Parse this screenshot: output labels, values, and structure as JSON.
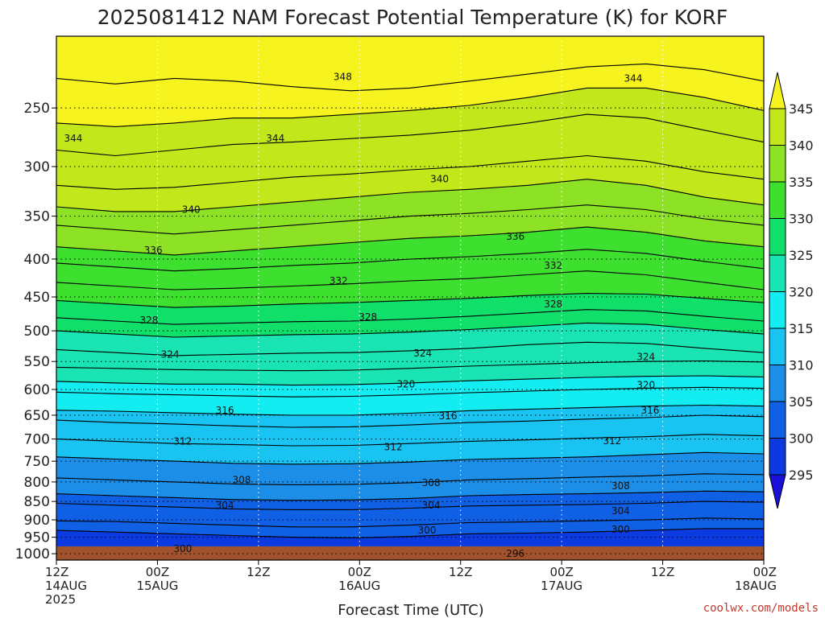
{
  "chart_data": {
    "type": "heatmap",
    "title": "2025081412 NAM Forecast Potential Temperature (K) for KORF",
    "xlabel": "Forecast Time (UTC)",
    "ylabel": "",
    "credit": "coolwx.com/models",
    "x_range_hours": [
      0,
      84
    ],
    "y_range_hPa": [
      1020,
      200
    ],
    "y_scale": "log-pressure",
    "grid": true,
    "x_ticks": [
      {
        "hour": 0,
        "lines": [
          "12Z",
          "14AUG",
          "2025"
        ]
      },
      {
        "hour": 12,
        "lines": [
          "00Z",
          "15AUG"
        ]
      },
      {
        "hour": 24,
        "lines": [
          "12Z"
        ]
      },
      {
        "hour": 36,
        "lines": [
          "00Z",
          "16AUG"
        ]
      },
      {
        "hour": 48,
        "lines": [
          "12Z"
        ]
      },
      {
        "hour": 60,
        "lines": [
          "00Z",
          "17AUG"
        ]
      },
      {
        "hour": 72,
        "lines": [
          "12Z"
        ]
      },
      {
        "hour": 84,
        "lines": [
          "00Z",
          "18AUG"
        ]
      }
    ],
    "y_ticks": [
      250,
      300,
      350,
      400,
      450,
      500,
      550,
      600,
      650,
      700,
      750,
      800,
      850,
      900,
      950,
      1000
    ],
    "colorbar": {
      "levels": [
        295,
        300,
        305,
        310,
        315,
        320,
        325,
        330,
        335,
        340,
        345
      ],
      "colors": [
        "#1a10d8",
        "#0a3ae0",
        "#1060e6",
        "#1c8ee8",
        "#19c3f2",
        "#13ecf0",
        "#1ae3b4",
        "#10e06a",
        "#3ee030",
        "#8de226",
        "#c2e81c",
        "#f6f31e"
      ]
    },
    "contour_series": [
      {
        "value": 296,
        "pressure_hPa": [
          1008,
          1008,
          1008,
          1008,
          1008,
          1008,
          1008,
          1008,
          1008,
          1008,
          1008,
          1008,
          1008
        ]
      },
      {
        "value": 298,
        "pressure_hPa": [
          985,
          985,
          985,
          984,
          984,
          983,
          982,
          982,
          981,
          980,
          980,
          982,
          986
        ]
      },
      {
        "value": 300,
        "pressure_hPa": [
          930,
          935,
          940,
          945,
          950,
          952,
          948,
          940,
          938,
          935,
          930,
          925,
          925
        ]
      },
      {
        "value": 302,
        "pressure_hPa": [
          903,
          905,
          910,
          915,
          920,
          920,
          915,
          908,
          906,
          903,
          900,
          895,
          898
        ]
      },
      {
        "value": 304,
        "pressure_hPa": [
          855,
          860,
          865,
          870,
          872,
          872,
          868,
          862,
          860,
          858,
          855,
          850,
          852
        ]
      },
      {
        "value": 306,
        "pressure_hPa": [
          830,
          835,
          840,
          845,
          847,
          846,
          842,
          835,
          832,
          830,
          827,
          823,
          825
        ]
      },
      {
        "value": 308,
        "pressure_hPa": [
          790,
          795,
          800,
          805,
          807,
          806,
          802,
          795,
          792,
          788,
          785,
          780,
          782
        ]
      },
      {
        "value": 310,
        "pressure_hPa": [
          740,
          745,
          750,
          755,
          757,
          756,
          752,
          746,
          743,
          740,
          735,
          730,
          733
        ]
      },
      {
        "value": 312,
        "pressure_hPa": [
          700,
          705,
          710,
          712,
          715,
          714,
          710,
          705,
          702,
          698,
          695,
          690,
          693
        ]
      },
      {
        "value": 314,
        "pressure_hPa": [
          660,
          665,
          668,
          672,
          675,
          674,
          670,
          665,
          662,
          658,
          655,
          650,
          653
        ]
      },
      {
        "value": 316,
        "pressure_hPa": [
          640,
          642,
          645,
          648,
          650,
          650,
          646,
          641,
          638,
          635,
          632,
          630,
          632
        ]
      },
      {
        "value": 318,
        "pressure_hPa": [
          605,
          608,
          610,
          612,
          614,
          613,
          610,
          606,
          603,
          600,
          598,
          596,
          598
        ]
      },
      {
        "value": 320,
        "pressure_hPa": [
          585,
          588,
          590,
          590,
          592,
          591,
          588,
          584,
          581,
          578,
          576,
          575,
          577
        ]
      },
      {
        "value": 322,
        "pressure_hPa": [
          560,
          562,
          564,
          565,
          566,
          565,
          562,
          558,
          555,
          552,
          550,
          549,
          551
        ]
      },
      {
        "value": 324,
        "pressure_hPa": [
          530,
          535,
          540,
          538,
          536,
          535,
          532,
          528,
          522,
          518,
          520,
          528,
          535
        ]
      },
      {
        "value": 326,
        "pressure_hPa": [
          500,
          505,
          510,
          508,
          506,
          505,
          502,
          498,
          493,
          488,
          490,
          498,
          505
        ]
      },
      {
        "value": 328,
        "pressure_hPa": [
          480,
          485,
          490,
          488,
          486,
          485,
          482,
          478,
          473,
          468,
          470,
          478,
          485
        ]
      },
      {
        "value": 330,
        "pressure_hPa": [
          455,
          460,
          465,
          463,
          460,
          458,
          455,
          452,
          448,
          445,
          446,
          452,
          458
        ]
      },
      {
        "value": 332,
        "pressure_hPa": [
          430,
          435,
          440,
          438,
          435,
          432,
          428,
          425,
          420,
          415,
          420,
          430,
          440
        ]
      },
      {
        "value": 334,
        "pressure_hPa": [
          405,
          410,
          415,
          412,
          408,
          405,
          400,
          397,
          393,
          388,
          393,
          403,
          412
        ]
      },
      {
        "value": 336,
        "pressure_hPa": [
          385,
          390,
          395,
          390,
          385,
          380,
          375,
          372,
          368,
          362,
          368,
          378,
          385
        ]
      },
      {
        "value": 338,
        "pressure_hPa": [
          360,
          365,
          370,
          365,
          360,
          355,
          350,
          347,
          343,
          338,
          343,
          353,
          360
        ]
      },
      {
        "value": 340,
        "pressure_hPa": [
          340,
          345,
          345,
          340,
          335,
          330,
          325,
          322,
          318,
          312,
          318,
          330,
          338
        ]
      },
      {
        "value": 342,
        "pressure_hPa": [
          318,
          322,
          320,
          315,
          310,
          307,
          303,
          300,
          295,
          290,
          295,
          305,
          312
        ]
      },
      {
        "value": 344,
        "pressure_hPa": [
          285,
          290,
          285,
          280,
          278,
          275,
          272,
          268,
          262,
          255,
          258,
          268,
          278
        ]
      },
      {
        "value": 346,
        "pressure_hPa": [
          262,
          265,
          262,
          258,
          258,
          255,
          252,
          248,
          242,
          235,
          235,
          242,
          252
        ]
      },
      {
        "value": 348,
        "pressure_hPa": [
          228,
          232,
          228,
          230,
          234,
          237,
          235,
          230,
          225,
          220,
          218,
          222,
          230
        ]
      }
    ],
    "contour_labels": [
      {
        "text": "348",
        "hour": 34,
        "pressure_hPa": 227
      },
      {
        "text": "344",
        "hour": 68.5,
        "pressure_hPa": 228
      },
      {
        "text": "344",
        "hour": 2,
        "pressure_hPa": 275
      },
      {
        "text": "344",
        "hour": 26,
        "pressure_hPa": 275
      },
      {
        "text": "340",
        "hour": 45.5,
        "pressure_hPa": 312
      },
      {
        "text": "340",
        "hour": 16,
        "pressure_hPa": 343
      },
      {
        "text": "336",
        "hour": 54.5,
        "pressure_hPa": 373
      },
      {
        "text": "336",
        "hour": 11.5,
        "pressure_hPa": 389
      },
      {
        "text": "332",
        "hour": 33.5,
        "pressure_hPa": 428
      },
      {
        "text": "332",
        "hour": 59,
        "pressure_hPa": 408
      },
      {
        "text": "328",
        "hour": 11,
        "pressure_hPa": 484
      },
      {
        "text": "328",
        "hour": 37,
        "pressure_hPa": 479
      },
      {
        "text": "328",
        "hour": 59,
        "pressure_hPa": 460
      },
      {
        "text": "324",
        "hour": 13.5,
        "pressure_hPa": 538
      },
      {
        "text": "324",
        "hour": 43.5,
        "pressure_hPa": 536
      },
      {
        "text": "324",
        "hour": 70,
        "pressure_hPa": 542
      },
      {
        "text": "320",
        "hour": 41.5,
        "pressure_hPa": 590
      },
      {
        "text": "320",
        "hour": 70,
        "pressure_hPa": 592
      },
      {
        "text": "316",
        "hour": 20,
        "pressure_hPa": 640
      },
      {
        "text": "316",
        "hour": 46.5,
        "pressure_hPa": 652
      },
      {
        "text": "316",
        "hour": 70.5,
        "pressure_hPa": 640
      },
      {
        "text": "312",
        "hour": 15,
        "pressure_hPa": 705
      },
      {
        "text": "312",
        "hour": 40,
        "pressure_hPa": 718
      },
      {
        "text": "312",
        "hour": 66,
        "pressure_hPa": 704
      },
      {
        "text": "308",
        "hour": 22,
        "pressure_hPa": 795
      },
      {
        "text": "308",
        "hour": 44.5,
        "pressure_hPa": 802
      },
      {
        "text": "308",
        "hour": 67,
        "pressure_hPa": 810
      },
      {
        "text": "304",
        "hour": 20,
        "pressure_hPa": 860
      },
      {
        "text": "304",
        "hour": 44.5,
        "pressure_hPa": 860
      },
      {
        "text": "304",
        "hour": 67,
        "pressure_hPa": 876
      },
      {
        "text": "300",
        "hour": 44,
        "pressure_hPa": 930
      },
      {
        "text": "300",
        "hour": 67,
        "pressure_hPa": 927
      },
      {
        "text": "300",
        "hour": 15,
        "pressure_hPa": 985
      },
      {
        "text": "296",
        "hour": 54.5,
        "pressure_hPa": 1000
      }
    ]
  }
}
